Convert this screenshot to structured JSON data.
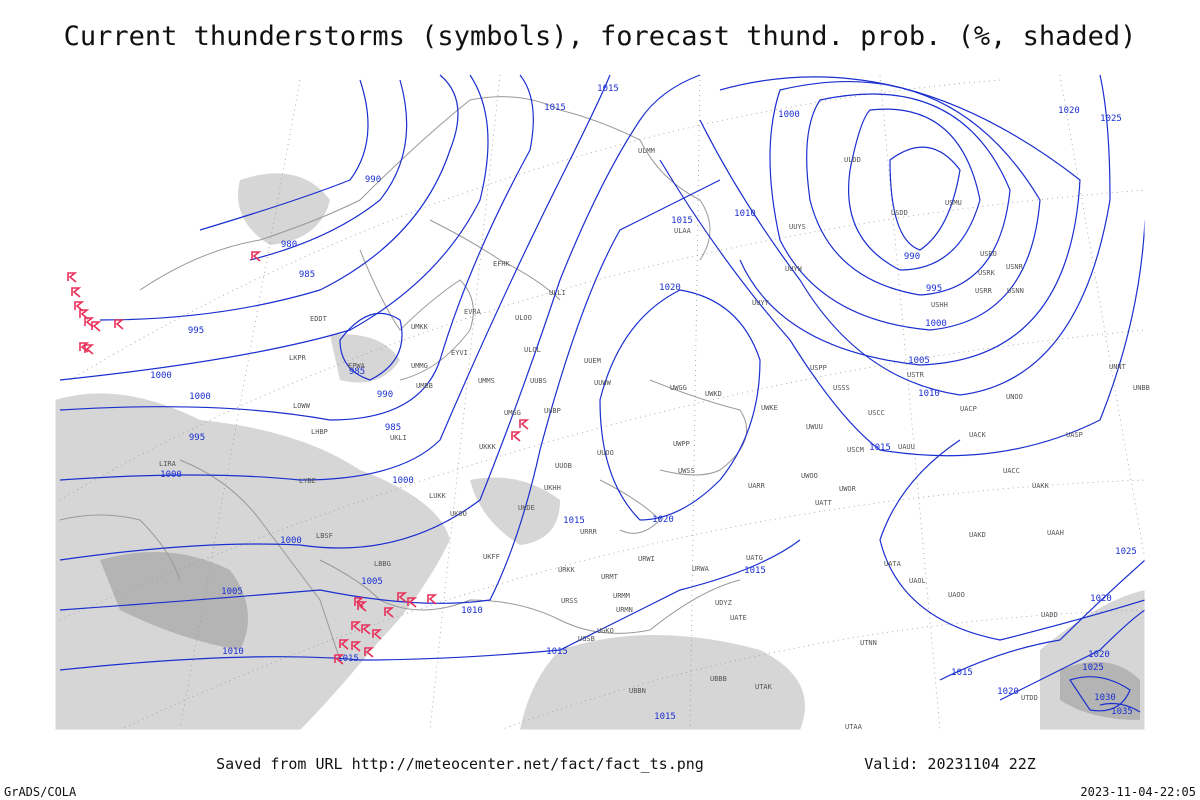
{
  "header": {
    "title": "Current thunderstorms (symbols), forecast thund. prob. (%, shaded)"
  },
  "footer": {
    "source": "Saved from URL http://meteocenter.net/fact/fact_ts.png",
    "valid": "Valid: 20231104 22Z",
    "software": "GrADS/COLA",
    "timestamp": "2023-11-04-22:05"
  },
  "isobar_labels": [
    1015,
    1015,
    1000,
    990,
    980,
    985,
    995,
    985,
    990,
    1000,
    1000,
    995,
    1000,
    985,
    1000,
    1000,
    1005,
    1005,
    1010,
    1010,
    1015,
    1015,
    1015,
    1015,
    1020,
    1020,
    1015,
    1010,
    990,
    995,
    1000,
    1005,
    1010,
    1015,
    1015,
    1020,
    1025,
    1025,
    1020,
    1020,
    1025,
    1030,
    1035,
    1015,
    1020
  ],
  "stations": [
    "ULAA",
    "UUEM",
    "UWGG",
    "UUWW",
    "UWPP",
    "UWSS",
    "URWA",
    "URWI",
    "URMT",
    "URMM",
    "URMN",
    "UGKO",
    "UGSB",
    "UDYZ",
    "UATE",
    "UATG",
    "UARR",
    "UWKD",
    "UWKE",
    "UWUU",
    "UWOO",
    "UWOR",
    "UATT",
    "USSS",
    "USCC",
    "USCM",
    "UAUU",
    "UACK",
    "UACC",
    "UAKK",
    "UAKD",
    "UATA",
    "UAOL",
    "UAOO",
    "UADD",
    "UTNN",
    "UTDD",
    "UTAK",
    "UBBB",
    "UBBN",
    "UTAA",
    "ULLI",
    "ULOO",
    "ULOL",
    "EFHK",
    "UMMS",
    "UMGG",
    "UKKK",
    "UKOO",
    "UKFF",
    "URKK",
    "URSS",
    "URRR",
    "UKDE",
    "UKHH",
    "UUOB",
    "UUOO",
    "UUBP",
    "UUBS",
    "UMKK",
    "EVRA",
    "EYVI",
    "UMMG",
    "UMBB",
    "EPWA",
    "UKLI",
    "LUKK",
    "LBBG",
    "LBSF",
    "LYBE",
    "LHBP",
    "LOWW",
    "LKPR",
    "EDDT",
    "LIRA",
    "UUYY",
    "UUYH",
    "UUYS",
    "ULDD",
    "ULMM",
    "USDD",
    "USMU",
    "USRO",
    "USRK",
    "USNR",
    "USRR",
    "USNN",
    "USHH",
    "USTR",
    "UNOO",
    "UACP",
    "UASP",
    "UAAH",
    "UNNT",
    "UNBB",
    "USPP"
  ]
}
